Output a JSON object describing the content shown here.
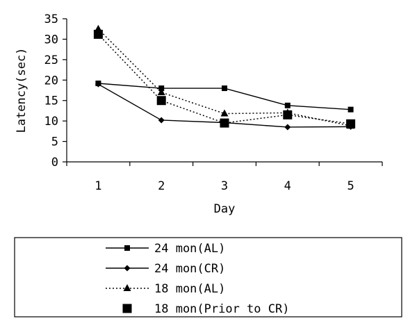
{
  "chart_data": {
    "type": "line",
    "title": "",
    "xlabel": "Day",
    "ylabel": "Latency(sec)",
    "categories": [
      "1",
      "2",
      "3",
      "4",
      "5"
    ],
    "ylim": [
      0,
      35
    ],
    "yticks": [
      "0",
      "5",
      "10",
      "15",
      "20",
      "25",
      "30",
      "35"
    ],
    "grid": false,
    "legend_position": "bottom",
    "series": [
      {
        "name": "24 mon(AL)",
        "values": [
          19.2,
          18.0,
          18.0,
          13.8,
          12.8
        ],
        "line": "solid",
        "marker": "square-small"
      },
      {
        "name": "24 mon(CR)",
        "values": [
          19.0,
          10.2,
          9.6,
          8.5,
          8.6
        ],
        "line": "solid",
        "marker": "diamond"
      },
      {
        "name": "18 mon(AL)",
        "values": [
          32.5,
          17.0,
          11.8,
          12.0,
          8.8
        ],
        "line": "dotted",
        "marker": "triangle"
      },
      {
        "name": "18 mon(Prior to CR)",
        "values": [
          31.2,
          15.0,
          9.5,
          11.5,
          9.3
        ],
        "line": "dotted",
        "marker": "square-large"
      }
    ]
  }
}
